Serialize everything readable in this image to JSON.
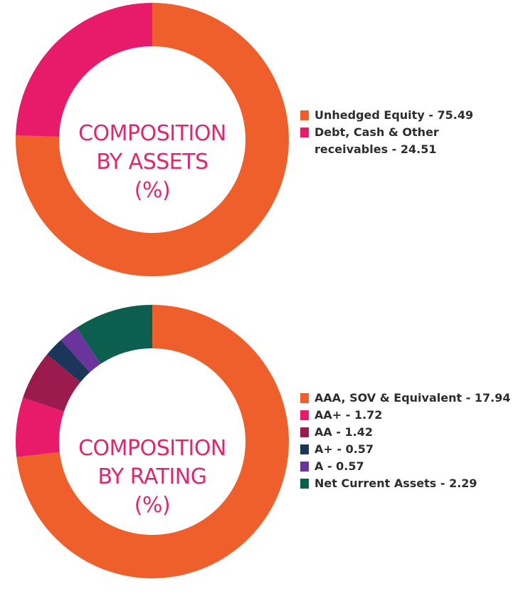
{
  "chart_data": [
    {
      "type": "pie",
      "title_lines": [
        "COMPOSITION",
        "BY ASSETS",
        "(%)"
      ],
      "slices": [
        {
          "label": "Unhedged Equity",
          "value": 75.49,
          "legend_text": "Unhedged Equity - 75.49",
          "color": "#ee5f2b"
        },
        {
          "label": "Debt, Cash & Other receivables",
          "value": 24.51,
          "legend_text": "Debt, Cash & Other receivables - 24.51",
          "color": "#e81b6b"
        }
      ],
      "legend_placement": "right"
    },
    {
      "type": "pie",
      "title_lines": [
        "COMPOSITION",
        "BY RATING",
        "(%)"
      ],
      "slices": [
        {
          "label": "AAA, SOV & Equivalent",
          "value": 17.94,
          "legend_text": "AAA, SOV & Equivalent - 17.94",
          "color": "#ee5f2b"
        },
        {
          "label": "AA+",
          "value": 1.72,
          "legend_text": "AA+ - 1.72",
          "color": "#e81b6b"
        },
        {
          "label": "AA",
          "value": 1.42,
          "legend_text": "AA - 1.42",
          "color": "#9c1b4f"
        },
        {
          "label": "A+",
          "value": 0.57,
          "legend_text": "A+ - 0.57",
          "color": "#1b3659"
        },
        {
          "label": "A",
          "value": 0.57,
          "legend_text": "A - 0.57",
          "color": "#6b349c"
        },
        {
          "label": "Net Current Assets",
          "value": 2.29,
          "legend_text": "Net Current Assets - 2.29",
          "color": "#0c5f4f"
        }
      ],
      "legend_placement": "right"
    }
  ]
}
